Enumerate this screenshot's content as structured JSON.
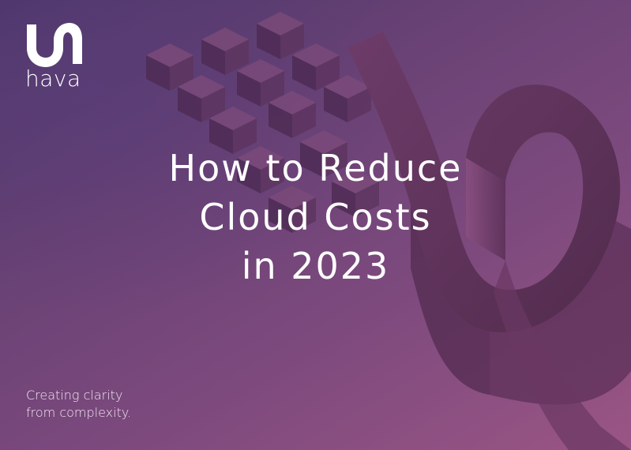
{
  "brand": {
    "name": "hava",
    "logo_icon": "hava-logo-icon"
  },
  "headline": {
    "lines": [
      "How to Reduce",
      "Cloud Costs",
      "in 2023"
    ]
  },
  "tagline": {
    "lines": [
      "Creating clarity",
      "from complexity."
    ]
  },
  "colors": {
    "background_start": "#4a3668",
    "background_end": "#9a5584",
    "text": "#ffffff",
    "shape_dark": "#4f2a4e",
    "shape_mid": "#6e3a66"
  },
  "decorations": [
    "pixel-cube-cluster",
    "ribbon-loop-shape"
  ]
}
